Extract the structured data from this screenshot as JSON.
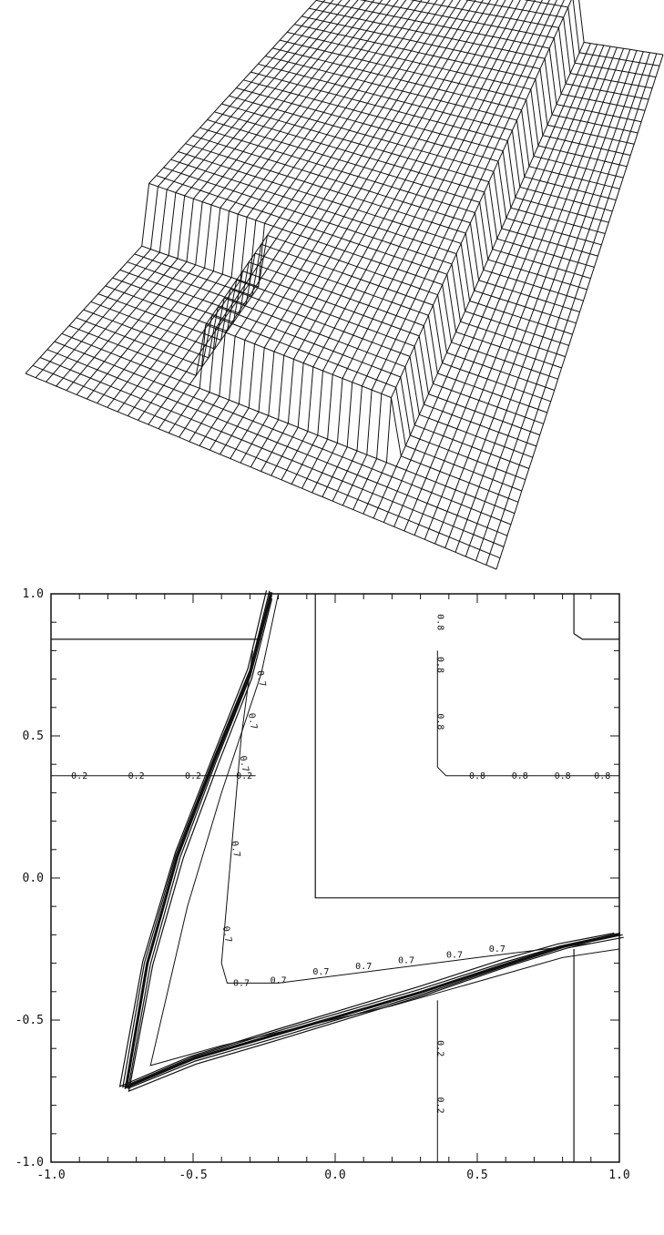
{
  "figure_top": {
    "type": "surface-mesh",
    "style": "wireframe, black on white"
  },
  "figure_bottom": {
    "type": "contour-plot"
  },
  "chart_data": {
    "type": "contour",
    "xlim": [
      -1.0,
      1.0
    ],
    "ylim": [
      -1.0,
      1.0
    ],
    "x_tick_labels": [
      "-1.0",
      "-0.5",
      "0.0",
      "0.5",
      "1.0"
    ],
    "y_tick_labels": [
      "-1.0",
      "-0.5",
      "0.0",
      "0.5",
      "1.0"
    ],
    "grid": false,
    "contour_levels": [
      {
        "label": "0.2",
        "region": "upper-left"
      },
      {
        "label": "0.2",
        "region": "lower-right"
      },
      {
        "label": "0.7",
        "region": "central wedge"
      },
      {
        "label": "0.8",
        "region": "upper-right"
      }
    ],
    "level_lines": {
      "upper_left_horizontal_y": 0.84,
      "upper_right_corner": {
        "x": 0.84,
        "y": 0.84
      },
      "inner_box_corner": {
        "x": -0.07,
        "y": -0.07
      },
      "lower_right_vertical_x": 0.84,
      "label_line_y_0_2_and_0_8": 0.36,
      "label_line_x_0_2_and_0_8": 0.36
    },
    "shock_path": [
      [
        -0.23,
        1.0
      ],
      [
        -0.3,
        0.72
      ],
      [
        -0.42,
        0.42
      ],
      [
        -0.55,
        0.08
      ],
      [
        -0.66,
        -0.3
      ],
      [
        -0.74,
        -0.74
      ],
      [
        -0.5,
        -0.64
      ],
      [
        -0.2,
        -0.55
      ],
      [
        0.3,
        -0.4
      ],
      [
        0.6,
        -0.3
      ],
      [
        0.8,
        -0.24
      ],
      [
        1.0,
        -0.2
      ]
    ],
    "wedge_0_7_path": [
      [
        -0.2,
        1.0
      ],
      [
        -0.26,
        0.72
      ],
      [
        -0.4,
        0.3
      ],
      [
        -0.52,
        -0.1
      ],
      [
        -0.65,
        -0.66
      ],
      [
        -0.4,
        -0.59
      ],
      [
        0.2,
        -0.45
      ],
      [
        0.8,
        -0.28
      ],
      [
        1.0,
        -0.25
      ]
    ]
  }
}
